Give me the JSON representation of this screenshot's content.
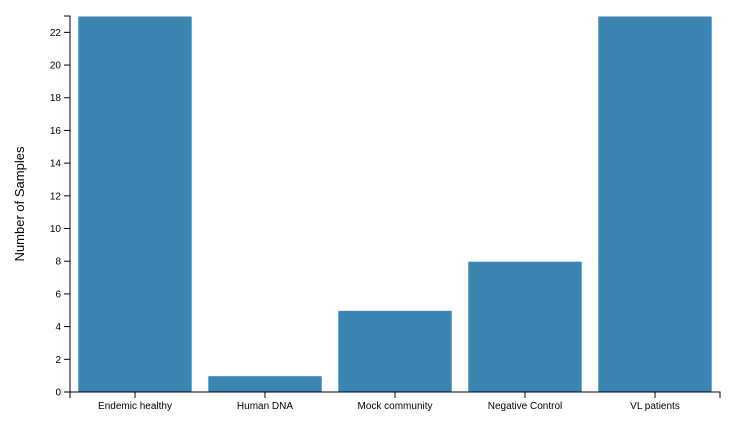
{
  "chart_data": {
    "type": "bar",
    "categories": [
      "Endemic healthy",
      "Human DNA",
      "Mock community",
      "Negative Control",
      "VL patients"
    ],
    "values": [
      23,
      1,
      5,
      8,
      23
    ],
    "title": "",
    "xlabel": "",
    "ylabel": "Number of Samples",
    "ylim": [
      0,
      23
    ],
    "yticks": [
      0,
      2,
      4,
      6,
      8,
      10,
      12,
      14,
      16,
      18,
      20,
      22
    ],
    "bar_color": "#3b85b3",
    "grid": false,
    "legend": "none"
  }
}
